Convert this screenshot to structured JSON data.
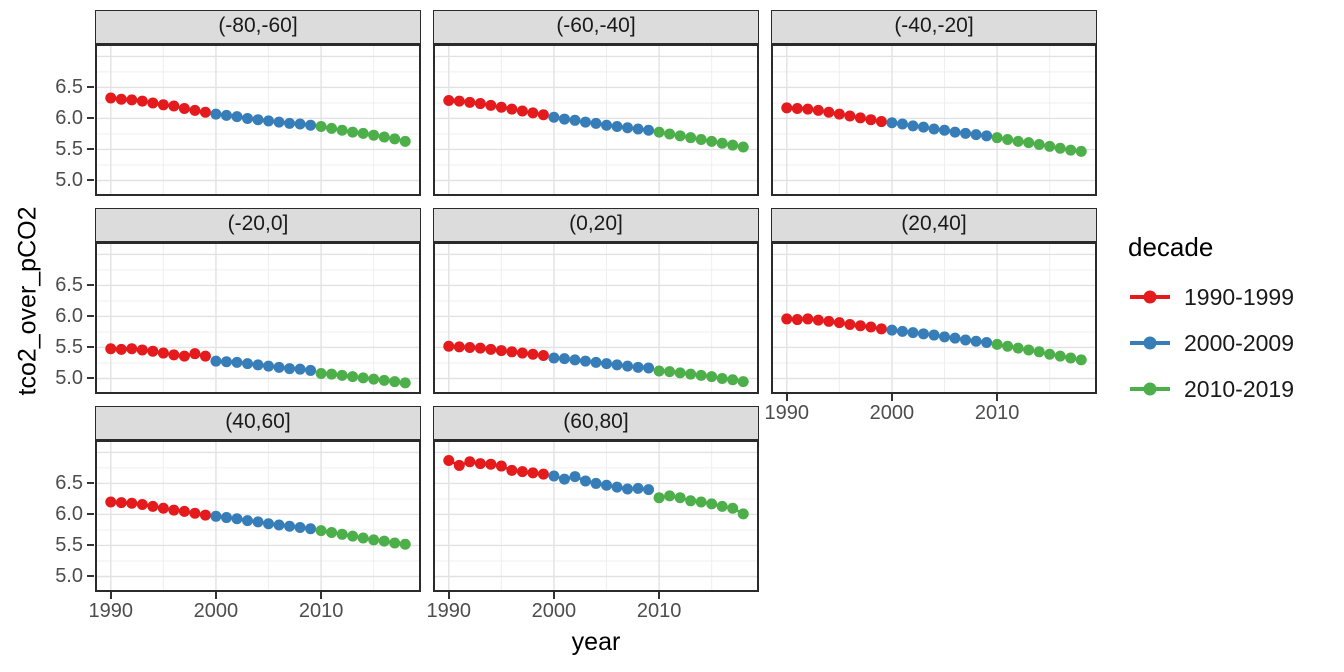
{
  "figure": {
    "legend": {
      "title": "decade",
      "items": [
        {
          "label": "1990-1999",
          "color": "#E41A1C"
        },
        {
          "label": "2000-2009",
          "color": "#377EB8"
        },
        {
          "label": "2010-2019",
          "color": "#4DAF4A"
        }
      ]
    }
  },
  "chart_data": {
    "type": "scatter",
    "title": "",
    "xlabel": "year",
    "ylabel": "tco2_over_pCO2",
    "legend_title": "decade",
    "legend_position": "right",
    "grid": true,
    "x": [
      1990,
      1991,
      1992,
      1993,
      1994,
      1995,
      1996,
      1997,
      1998,
      1999,
      2000,
      2001,
      2002,
      2003,
      2004,
      2005,
      2006,
      2007,
      2008,
      2009,
      2010,
      2011,
      2012,
      2013,
      2014,
      2015,
      2016,
      2017,
      2018
    ],
    "xlim": [
      1988.5,
      2019.5
    ],
    "ylim": [
      4.75,
      7.2
    ],
    "x_ticks": [
      1990,
      2000,
      2010
    ],
    "x_minor_gridlines": [
      1995,
      2005,
      2015
    ],
    "y_ticks": [
      5.0,
      5.5,
      6.0,
      6.5
    ],
    "y_major_gridlines": [
      5.0,
      5.5,
      6.0,
      6.5,
      7.0
    ],
    "y_minor_gridlines": [
      5.25,
      5.75,
      6.25,
      6.75
    ],
    "decades": [
      {
        "name": "1990-1999",
        "color": "#E41A1C",
        "from": 1990,
        "to": 1999
      },
      {
        "name": "2000-2009",
        "color": "#377EB8",
        "from": 2000,
        "to": 2009
      },
      {
        "name": "2010-2019",
        "color": "#4DAF4A",
        "from": 2010,
        "to": 2019
      }
    ],
    "facets": [
      {
        "label": "(-80,-60]",
        "values": [
          6.33,
          6.31,
          6.3,
          6.28,
          6.25,
          6.22,
          6.2,
          6.16,
          6.13,
          6.1,
          6.07,
          6.05,
          6.03,
          6.0,
          5.98,
          5.96,
          5.94,
          5.92,
          5.91,
          5.89,
          5.87,
          5.84,
          5.81,
          5.78,
          5.76,
          5.73,
          5.7,
          5.67,
          5.63
        ]
      },
      {
        "label": "(-60,-40]",
        "values": [
          6.29,
          6.28,
          6.26,
          6.24,
          6.21,
          6.18,
          6.15,
          6.12,
          6.09,
          6.06,
          6.02,
          5.99,
          5.97,
          5.94,
          5.92,
          5.89,
          5.87,
          5.85,
          5.83,
          5.81,
          5.78,
          5.75,
          5.72,
          5.69,
          5.66,
          5.63,
          5.6,
          5.57,
          5.54
        ]
      },
      {
        "label": "(-40,-20]",
        "values": [
          6.17,
          6.16,
          6.15,
          6.13,
          6.1,
          6.07,
          6.04,
          6.01,
          5.98,
          5.95,
          5.93,
          5.91,
          5.88,
          5.86,
          5.83,
          5.81,
          5.78,
          5.76,
          5.74,
          5.72,
          5.69,
          5.66,
          5.63,
          5.61,
          5.58,
          5.55,
          5.52,
          5.49,
          5.47
        ]
      },
      {
        "label": "(-20,0]",
        "values": [
          5.48,
          5.47,
          5.48,
          5.46,
          5.44,
          5.41,
          5.38,
          5.36,
          5.4,
          5.36,
          5.28,
          5.27,
          5.26,
          5.24,
          5.22,
          5.2,
          5.18,
          5.16,
          5.15,
          5.13,
          5.08,
          5.07,
          5.05,
          5.03,
          5.01,
          4.99,
          4.97,
          4.95,
          4.93
        ]
      },
      {
        "label": "(0,20]",
        "values": [
          5.52,
          5.51,
          5.5,
          5.49,
          5.47,
          5.45,
          5.43,
          5.41,
          5.39,
          5.37,
          5.33,
          5.32,
          5.3,
          5.28,
          5.26,
          5.24,
          5.22,
          5.2,
          5.18,
          5.17,
          5.12,
          5.11,
          5.09,
          5.07,
          5.05,
          5.03,
          5.0,
          4.98,
          4.95
        ]
      },
      {
        "label": "(20,40]",
        "values": [
          5.96,
          5.95,
          5.96,
          5.94,
          5.92,
          5.9,
          5.87,
          5.85,
          5.83,
          5.8,
          5.78,
          5.76,
          5.74,
          5.72,
          5.7,
          5.67,
          5.65,
          5.62,
          5.6,
          5.58,
          5.55,
          5.52,
          5.49,
          5.46,
          5.43,
          5.39,
          5.36,
          5.33,
          5.3
        ]
      },
      {
        "label": "(40,60]",
        "values": [
          6.2,
          6.19,
          6.18,
          6.16,
          6.13,
          6.1,
          6.07,
          6.05,
          6.02,
          5.99,
          5.97,
          5.95,
          5.93,
          5.9,
          5.88,
          5.85,
          5.83,
          5.81,
          5.79,
          5.77,
          5.74,
          5.71,
          5.68,
          5.65,
          5.62,
          5.59,
          5.57,
          5.54,
          5.52
        ]
      },
      {
        "label": "(60,80]",
        "values": [
          6.87,
          6.79,
          6.85,
          6.82,
          6.81,
          6.78,
          6.71,
          6.69,
          6.67,
          6.65,
          6.62,
          6.57,
          6.61,
          6.54,
          6.5,
          6.47,
          6.44,
          6.41,
          6.42,
          6.4,
          6.27,
          6.3,
          6.27,
          6.22,
          6.2,
          6.17,
          6.13,
          6.1,
          6.01
        ]
      }
    ],
    "facets_with_y_axis": [
      0,
      3,
      6
    ],
    "facets_with_x_axis": [
      5,
      6,
      7
    ]
  }
}
